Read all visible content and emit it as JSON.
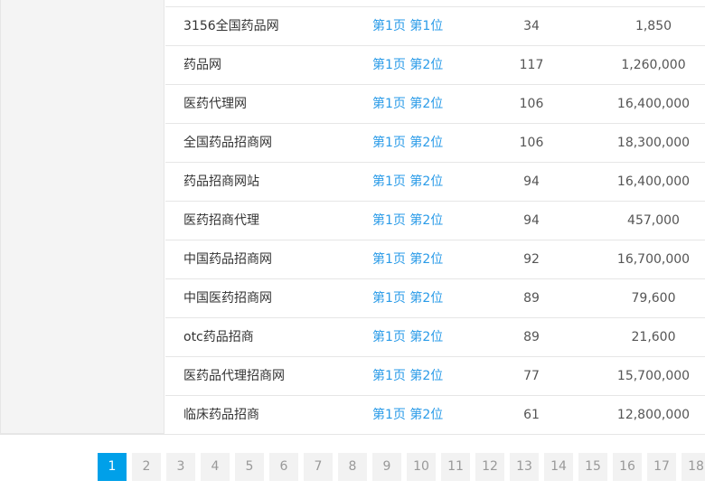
{
  "rows": [
    {
      "keyword": "3156全国药品网",
      "rank": "第1页 第1位",
      "count": "34",
      "value": "1,850"
    },
    {
      "keyword": "药品网",
      "rank": "第1页 第2位",
      "count": "117",
      "value": "1,260,000"
    },
    {
      "keyword": "医药代理网",
      "rank": "第1页 第2位",
      "count": "106",
      "value": "16,400,000"
    },
    {
      "keyword": "全国药品招商网",
      "rank": "第1页 第2位",
      "count": "106",
      "value": "18,300,000"
    },
    {
      "keyword": "药品招商网站",
      "rank": "第1页 第2位",
      "count": "94",
      "value": "16,400,000"
    },
    {
      "keyword": "医药招商代理",
      "rank": "第1页 第2位",
      "count": "94",
      "value": "457,000"
    },
    {
      "keyword": "中国药品招商网",
      "rank": "第1页 第2位",
      "count": "92",
      "value": "16,700,000"
    },
    {
      "keyword": "中国医药招商网",
      "rank": "第1页 第2位",
      "count": "89",
      "value": "79,600"
    },
    {
      "keyword": "otc药品招商",
      "rank": "第1页 第2位",
      "count": "89",
      "value": "21,600"
    },
    {
      "keyword": "医药品代理招商网",
      "rank": "第1页 第2位",
      "count": "77",
      "value": "15,700,000"
    },
    {
      "keyword": "临床药品招商",
      "rank": "第1页 第2位",
      "count": "61",
      "value": "12,800,000"
    }
  ],
  "pagination": {
    "current": "1",
    "pages": [
      "1",
      "2",
      "3",
      "4",
      "5",
      "6",
      "7",
      "8",
      "9",
      "10",
      "11",
      "12",
      "13",
      "14",
      "15",
      "16",
      "17",
      "18"
    ]
  },
  "colors": {
    "accent": "#00a0e9",
    "link": "#2a9be8"
  }
}
